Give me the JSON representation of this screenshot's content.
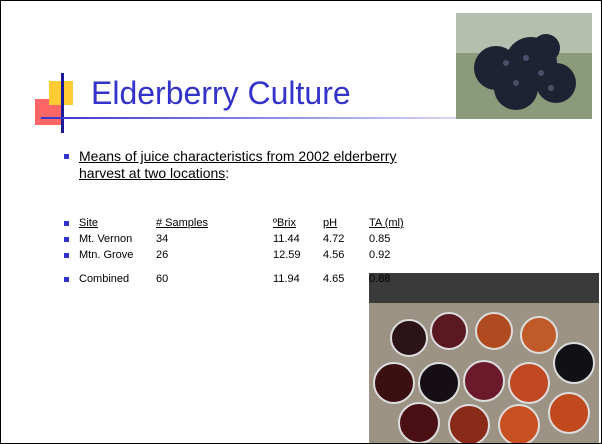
{
  "slide": {
    "title": "Elderberry Culture",
    "intro": {
      "text": "Means of juice characteristics from 2002 elderberry harvest at two locations",
      "suffix": ":"
    },
    "table": {
      "header": [
        "Site",
        "# Samples",
        "ºBrix",
        "pH",
        "TA (ml)"
      ],
      "rows": [
        [
          "Mt. Vernon",
          "34",
          "11.44",
          "4.72",
          "0.85"
        ],
        [
          "Mtn. Grove",
          "26",
          "12.59",
          "4.56",
          "0.92"
        ],
        [
          "Combined",
          "60",
          "11.94",
          "4.65",
          "0.88"
        ]
      ]
    }
  }
}
